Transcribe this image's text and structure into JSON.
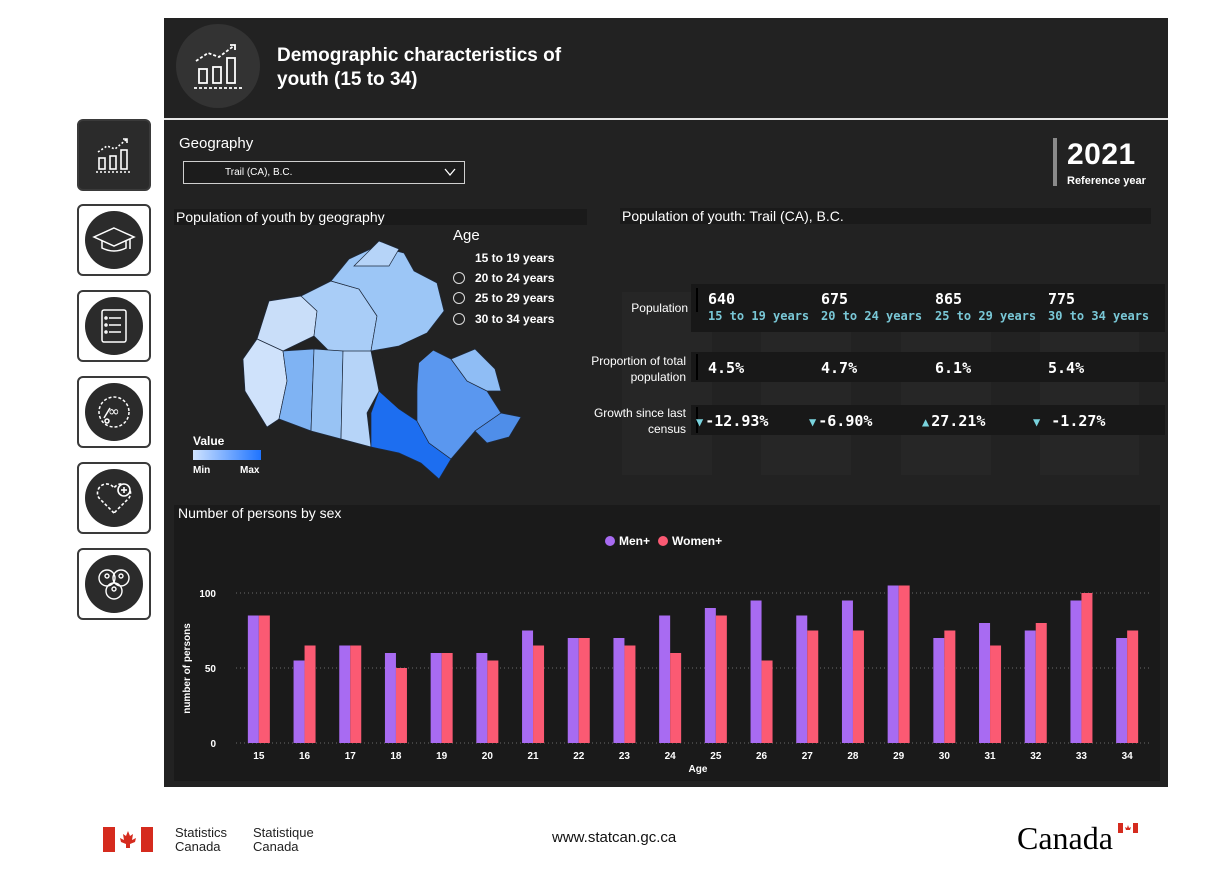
{
  "header": {
    "title": "Demographic characteristics of youth (15 to 34)",
    "geography_label": "Geography",
    "geography_value": "Trail (CA), B.C.",
    "year": "2021",
    "year_label": "Reference year"
  },
  "nav": [
    {
      "icon": "bar-chart-icon",
      "active": true
    },
    {
      "icon": "graduation-cap-icon",
      "active": false
    },
    {
      "icon": "checklist-document-icon",
      "active": false
    },
    {
      "icon": "language-infinity-icon",
      "active": false
    },
    {
      "icon": "heart-plus-icon",
      "active": false
    },
    {
      "icon": "people-group-icon",
      "active": false
    }
  ],
  "map": {
    "heading": "Population of youth by geography",
    "age_title": "Age",
    "age_options": [
      "15 to 19 years",
      "20 to 24 years",
      "25 to 29 years",
      "30 to 34 years"
    ],
    "selected_age": 0,
    "value_legend_title": "Value",
    "value_min": "Min",
    "value_max": "Max"
  },
  "stats": {
    "heading": "Population of youth: Trail (CA), B.C.",
    "row_labels": {
      "population": "Population",
      "proportion": "Proportion of total population",
      "growth": "Growth since last census"
    },
    "columns": [
      {
        "population": "640",
        "age": "15 to 19 years",
        "proportion": "4.5%",
        "growth": "-12.93%",
        "direction": "down"
      },
      {
        "population": "675",
        "age": "20 to 24 years",
        "proportion": "4.7%",
        "growth": "-6.90%",
        "direction": "down"
      },
      {
        "population": "865",
        "age": "25 to 29 years",
        "proportion": "6.1%",
        "growth": "27.21%",
        "direction": "up"
      },
      {
        "population": "775",
        "age": "30 to 34 years",
        "proportion": "5.4%",
        "growth": " -1.27%",
        "direction": "down"
      }
    ]
  },
  "sex_chart": {
    "heading": "Number of persons by sex"
  },
  "chart_data": {
    "type": "bar",
    "xlabel": "Age",
    "ylabel": "number of persons",
    "categories": [
      "15",
      "16",
      "17",
      "18",
      "19",
      "20",
      "21",
      "22",
      "23",
      "24",
      "25",
      "26",
      "27",
      "28",
      "29",
      "30",
      "31",
      "32",
      "33",
      "34"
    ],
    "series": [
      {
        "name": "Men+",
        "color": "#a86bf2",
        "values": [
          85,
          55,
          65,
          60,
          60,
          60,
          75,
          70,
          70,
          85,
          90,
          95,
          85,
          95,
          105,
          70,
          80,
          75,
          95,
          70
        ]
      },
      {
        "name": "Women+",
        "color": "#fb5a73",
        "values": [
          85,
          65,
          65,
          50,
          60,
          55,
          65,
          70,
          65,
          60,
          85,
          55,
          75,
          75,
          105,
          75,
          65,
          80,
          100,
          75
        ]
      }
    ],
    "yticks": [
      0,
      50,
      100
    ],
    "ylim": [
      0,
      110
    ],
    "grid": true,
    "legend": "top-center"
  },
  "footer": {
    "stats_en_1": "Statistics",
    "stats_en_2": "Canada",
    "stats_fr_1": "Statistique",
    "stats_fr_2": "Canada",
    "url": "www.statcan.gc.ca",
    "wordmark": "Canada"
  }
}
